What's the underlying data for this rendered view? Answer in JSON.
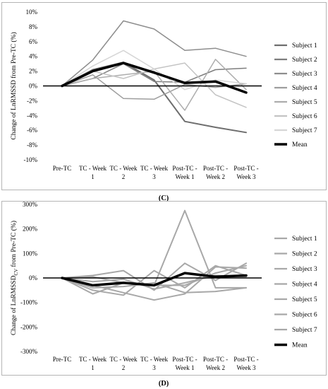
{
  "chart_data": [
    {
      "type": "line",
      "caption": "(C)",
      "ylabel": "Change of LnRMSSD from Pre-TC (%)",
      "ylim": [
        -10,
        10
      ],
      "yticks": [
        "10%",
        "8%",
        "6%",
        "4%",
        "2%",
        "0%",
        "-2%",
        "-4%",
        "-6%",
        "-8%",
        "-10%"
      ],
      "categories": [
        "Pre-TC",
        "TC - Week 1",
        "TC - Week 2",
        "TC - Week 3",
        "Post-TC - Week 1",
        "Post-TC - Week 2",
        "Post-TC - Week 3"
      ],
      "category_lines": [
        [
          "Pre-TC"
        ],
        [
          "TC - Week",
          "1"
        ],
        [
          "TC - Week",
          "2"
        ],
        [
          "TC - Week",
          "3"
        ],
        [
          "Post-TC -",
          "Week 1"
        ],
        [
          "Post-TC -",
          "Week 2"
        ],
        [
          "Post-TC -",
          "Week 3"
        ]
      ],
      "grid": false,
      "legend": "right",
      "series": [
        {
          "name": "Subject 1",
          "values": [
            0,
            2.2,
            3.2,
            0.8,
            -4.8,
            -5.6,
            -6.3
          ],
          "color": "#6e6e6e",
          "width": 2
        },
        {
          "name": "Subject 2",
          "values": [
            0,
            1.0,
            3.0,
            0.6,
            0.5,
            2.2,
            2.4
          ],
          "color": "#7e7e7e",
          "width": 1.5
        },
        {
          "name": "Subject 3",
          "values": [
            0,
            3.5,
            8.8,
            7.7,
            4.8,
            5.1,
            4.0
          ],
          "color": "#8e8e8e",
          "width": 1.5
        },
        {
          "name": "Subject 4",
          "values": [
            0,
            1.5,
            -1.7,
            -1.8,
            0.2,
            -0.2,
            0.3
          ],
          "color": "#9e9e9e",
          "width": 1.5
        },
        {
          "name": "Subject 5",
          "values": [
            0,
            1.0,
            1.5,
            2.0,
            -3.3,
            3.6,
            -0.5
          ],
          "color": "#adadad",
          "width": 1.5
        },
        {
          "name": "Subject 6",
          "values": [
            0,
            2.0,
            1.0,
            2.3,
            3.1,
            -1.2,
            -2.9
          ],
          "color": "#c4c4c4",
          "width": 1.5
        },
        {
          "name": "Subject 7",
          "values": [
            0,
            2.7,
            4.8,
            2.3,
            -0.5,
            0.8,
            0.3
          ],
          "color": "#d6d6d6",
          "width": 1.5
        },
        {
          "name": "Mean",
          "values": [
            0,
            2.0,
            3.1,
            1.8,
            0.4,
            0.6,
            -0.9
          ],
          "color": "#000000",
          "width": 3.5
        }
      ]
    },
    {
      "type": "line",
      "caption": "(D)",
      "ylabel_main": "Change of LnRMSSD",
      "ylabel_sub": "CV",
      "ylabel_end": " from Pre-TC (%)",
      "ylim": [
        -300,
        300
      ],
      "yticks": [
        "300%",
        "200%",
        "100%",
        "0%",
        "-100%",
        "-200%",
        "-300%"
      ],
      "categories": [
        "Pre-TC",
        "TC - Week 1",
        "TC - Week 2",
        "TC - Week 3",
        "Post-TC - Week 1",
        "Post-TC - Week 2",
        "Post-TC - Week 3"
      ],
      "category_lines": [
        [
          "Pre-TC"
        ],
        [
          "TC - Week",
          "1"
        ],
        [
          "TC - Week",
          "2"
        ],
        [
          "TC - Week",
          "3"
        ],
        [
          "Post-TC -",
          "Week 1"
        ],
        [
          "Post-TC -",
          "Week 2"
        ],
        [
          "Post-TC -",
          "Week 3"
        ]
      ],
      "grid": false,
      "legend": "right",
      "series": [
        {
          "name": "Subject 1",
          "values": [
            0,
            -65,
            -20,
            -30,
            275,
            -40,
            -40
          ],
          "color": "#a8a8a8",
          "width": 2
        },
        {
          "name": "Subject 2",
          "values": [
            0,
            -30,
            -60,
            -90,
            -65,
            45,
            40
          ],
          "color": "#a8a8a8",
          "width": 2
        },
        {
          "name": "Subject 3",
          "values": [
            0,
            10,
            30,
            -50,
            60,
            -10,
            60
          ],
          "color": "#a8a8a8",
          "width": 2
        },
        {
          "name": "Subject 4",
          "values": [
            0,
            -50,
            -70,
            30,
            -40,
            50,
            10
          ],
          "color": "#a8a8a8",
          "width": 2
        },
        {
          "name": "Subject 5",
          "values": [
            0,
            -40,
            -35,
            -20,
            -60,
            -55,
            -40
          ],
          "color": "#a8a8a8",
          "width": 2
        },
        {
          "name": "Subject 6",
          "values": [
            0,
            5,
            -20,
            -30,
            -30,
            20,
            50
          ],
          "color": "#a8a8a8",
          "width": 2
        },
        {
          "name": "Subject 7",
          "values": [
            0,
            -15,
            -5,
            -45,
            -20,
            10,
            5
          ],
          "color": "#a8a8a8",
          "width": 2
        },
        {
          "name": "Mean",
          "values": [
            0,
            -30,
            -20,
            -30,
            20,
            5,
            10
          ],
          "color": "#000000",
          "width": 3.5
        }
      ]
    }
  ]
}
